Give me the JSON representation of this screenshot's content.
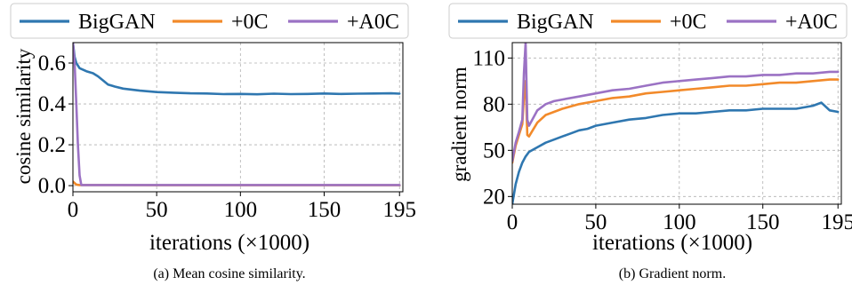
{
  "colors": {
    "BigGAN": "#2f77b0",
    "+0C": "#f28a2a",
    "+A0C": "#9b72c4"
  },
  "chart_data": [
    {
      "type": "line",
      "caption": "(a) Mean cosine similarity.",
      "xlabel": "iterations (×1000)",
      "ylabel": "cosine similarity",
      "xlim": [
        0,
        197
      ],
      "ylim": [
        -0.03,
        0.7
      ],
      "xticks": [
        0,
        50,
        100,
        150,
        195
      ],
      "xtick_labels": [
        "0",
        "50",
        "100",
        "150",
        "195"
      ],
      "yticks": [
        0.0,
        0.2,
        0.4,
        0.6
      ],
      "ytick_labels": [
        "0.0",
        "0.2",
        "0.4",
        "0.6"
      ],
      "grid": true,
      "legend": {
        "placement": "top",
        "entries": [
          "BigGAN",
          "+0C",
          "+A0C"
        ]
      },
      "series": [
        {
          "name": "BigGAN",
          "x": [
            0,
            1,
            2,
            4,
            8,
            12,
            15,
            18,
            21,
            25,
            30,
            35,
            40,
            50,
            60,
            70,
            80,
            90,
            100,
            110,
            120,
            130,
            140,
            150,
            160,
            170,
            180,
            190,
            195
          ],
          "y": [
            0.7,
            0.63,
            0.6,
            0.575,
            0.56,
            0.55,
            0.535,
            0.515,
            0.495,
            0.485,
            0.475,
            0.47,
            0.465,
            0.458,
            0.455,
            0.452,
            0.451,
            0.448,
            0.449,
            0.447,
            0.45,
            0.448,
            0.449,
            0.451,
            0.449,
            0.45,
            0.451,
            0.452,
            0.45
          ]
        },
        {
          "name": "+0C",
          "x": [
            0,
            2,
            4,
            10,
            50,
            100,
            150,
            195
          ],
          "y": [
            0.02,
            0.005,
            0.003,
            0.003,
            0.002,
            0.002,
            0.002,
            0.002
          ]
        },
        {
          "name": "+A0C",
          "x": [
            0,
            1,
            2,
            3,
            4,
            5,
            10,
            50,
            100,
            150,
            195
          ],
          "y": [
            0.7,
            0.6,
            0.4,
            0.2,
            0.05,
            0.003,
            0.003,
            0.003,
            0.003,
            0.003,
            0.003
          ]
        }
      ]
    },
    {
      "type": "line",
      "caption": "(b) Gradient norm.",
      "xlabel": "iterations (×1000)",
      "ylabel": "gradient norm",
      "xlim": [
        0,
        197
      ],
      "ylim": [
        15,
        120
      ],
      "xticks": [
        0,
        50,
        100,
        150,
        195
      ],
      "xtick_labels": [
        "0",
        "50",
        "100",
        "150",
        "195"
      ],
      "yticks": [
        20,
        50,
        80,
        110
      ],
      "ytick_labels": [
        "20",
        "50",
        "80",
        "110"
      ],
      "grid": true,
      "legend": {
        "placement": "top",
        "entries": [
          "BigGAN",
          "+0C",
          "+A0C"
        ]
      },
      "series": [
        {
          "name": "BigGAN",
          "x": [
            0,
            2,
            4,
            6,
            8,
            10,
            15,
            20,
            25,
            30,
            35,
            40,
            45,
            50,
            60,
            70,
            80,
            90,
            100,
            110,
            120,
            130,
            140,
            150,
            160,
            170,
            180,
            185,
            190,
            195
          ],
          "y": [
            15,
            28,
            36,
            42,
            46,
            49,
            52,
            55,
            57,
            59,
            61,
            63,
            64,
            66,
            68,
            70,
            71,
            73,
            74,
            74,
            75,
            76,
            76,
            77,
            77,
            77,
            79,
            81,
            76,
            75
          ]
        },
        {
          "name": "+0C",
          "x": [
            0,
            2,
            4,
            6,
            7,
            8,
            9,
            10,
            15,
            20,
            25,
            30,
            40,
            50,
            60,
            70,
            80,
            90,
            100,
            110,
            120,
            130,
            140,
            150,
            160,
            170,
            180,
            190,
            195
          ],
          "y": [
            42,
            53,
            60,
            67,
            85,
            95,
            60,
            59,
            68,
            73,
            75,
            77,
            80,
            82,
            84,
            85,
            87,
            88,
            89,
            90,
            91,
            92,
            92,
            93,
            94,
            94,
            95,
            96,
            96
          ]
        },
        {
          "name": "+A0C",
          "x": [
            0,
            2,
            4,
            6,
            7,
            8,
            9,
            10,
            15,
            20,
            25,
            30,
            40,
            50,
            60,
            70,
            80,
            90,
            100,
            110,
            120,
            130,
            140,
            150,
            160,
            170,
            180,
            190,
            195
          ],
          "y": [
            43,
            55,
            62,
            70,
            100,
            120,
            70,
            66,
            76,
            80,
            82,
            83,
            85,
            87,
            89,
            90,
            92,
            94,
            95,
            96,
            97,
            98,
            98,
            99,
            99,
            100,
            100,
            101,
            101
          ]
        }
      ]
    }
  ]
}
